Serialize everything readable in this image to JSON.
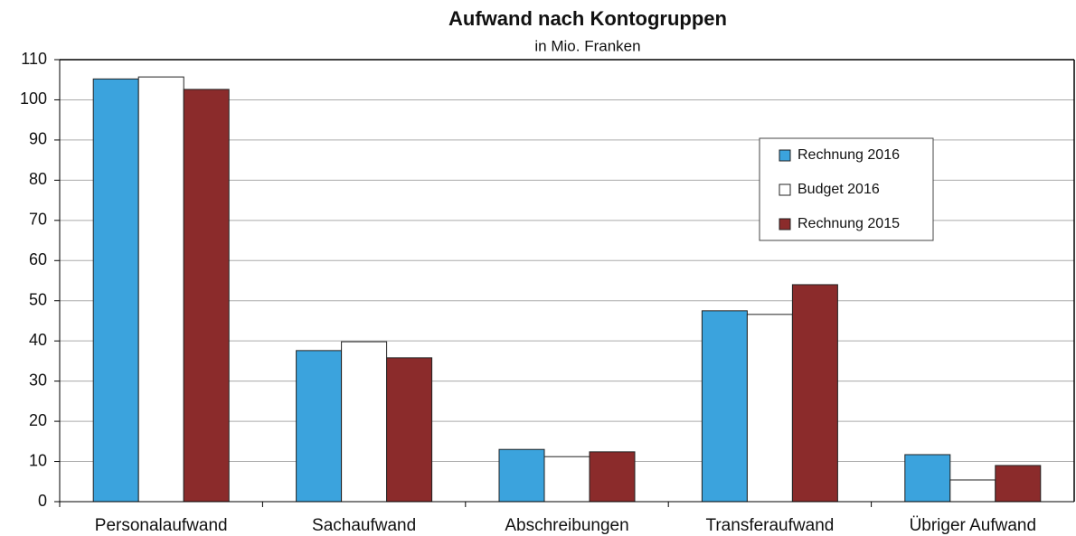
{
  "chart_data": {
    "type": "bar",
    "title": "Aufwand nach Kontogruppen",
    "subtitle": "in Mio. Franken",
    "categories": [
      "Personalaufwand",
      "Sachaufwand",
      "Abschreibungen",
      "Transferaufwand",
      "Übriger Aufwand"
    ],
    "series": [
      {
        "name": "Rechnung 2016",
        "color": "#3ba3dd",
        "values": [
          105.2,
          37.6,
          13.0,
          47.5,
          11.7
        ]
      },
      {
        "name": "Budget 2016",
        "color": "#ffffff",
        "values": [
          105.7,
          39.8,
          11.2,
          46.6,
          5.4
        ]
      },
      {
        "name": "Rechnung 2015",
        "color": "#8b2b2b",
        "values": [
          102.6,
          35.8,
          12.4,
          54.0,
          9.0
        ]
      }
    ],
    "ylim": [
      0,
      110
    ],
    "yticks": [
      0,
      10,
      20,
      30,
      40,
      50,
      60,
      70,
      80,
      90,
      100,
      110
    ],
    "grid": true,
    "legend": "upper right"
  }
}
